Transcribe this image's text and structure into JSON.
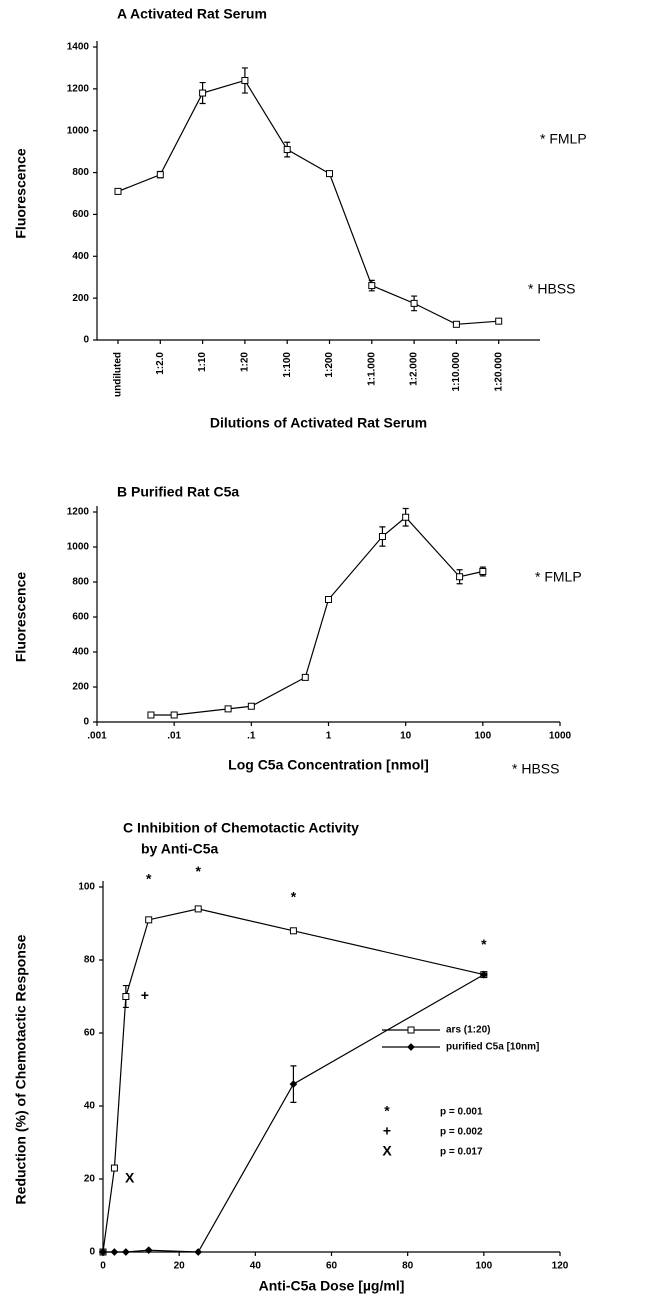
{
  "chart_data": [
    {
      "type": "line",
      "title": "A  Activated Rat Serum",
      "x_label": "Dilutions of Activated Rat Serum",
      "y_label": "Fluorescence",
      "categories": [
        "undiluted",
        "1:2.0",
        "1:10",
        "1:20",
        "1:100",
        "1:200",
        "1:1.000",
        "1:2.000",
        "1:10.000",
        "1:20.000"
      ],
      "values": [
        710,
        790,
        1180,
        1240,
        910,
        795,
        260,
        175,
        75,
        90
      ],
      "errors": [
        null,
        15,
        50,
        60,
        35,
        null,
        25,
        35,
        null,
        null
      ],
      "marker": "square",
      "color": "#000000",
      "ylim": [
        0,
        1400
      ],
      "yticks": [
        0,
        200,
        400,
        600,
        800,
        1000,
        1200,
        1400
      ],
      "annotations": [
        "* FMLP",
        "* HBSS"
      ]
    },
    {
      "type": "line",
      "title": "B  Purified Rat C5a",
      "x_label": "Log C5a Concentration [nmol]",
      "y_label": "Fluorescence",
      "x": [
        0.005,
        0.01,
        0.05,
        0.1,
        0.5,
        1,
        5,
        10,
        50,
        100
      ],
      "values": [
        40,
        40,
        75,
        90,
        255,
        700,
        1060,
        1170,
        830,
        860
      ],
      "errors": [
        null,
        null,
        null,
        null,
        null,
        null,
        55,
        50,
        40,
        25
      ],
      "marker": "square",
      "color": "#000000",
      "log_x": true,
      "xlim": [
        0.001,
        1000
      ],
      "xticks": [
        {
          "value": 0.001,
          "label": ".001"
        },
        {
          "value": 0.01,
          "label": ".01"
        },
        {
          "value": 0.1,
          "label": ".1"
        },
        1,
        10,
        100,
        1000
      ],
      "ylim": [
        0,
        1200
      ],
      "yticks": [
        0,
        200,
        400,
        600,
        800,
        1000,
        1200
      ],
      "annotations": [
        "* FMLP",
        "* HBSS"
      ]
    },
    {
      "type": "line",
      "title": "C  Inhibition of Chemotactic Activity",
      "subtitle": "by Anti-C5a",
      "x_label": "Anti-C5a Dose [µg/ml]",
      "y_label": "Reduction (%) of Chemotactic Response",
      "series": [
        {
          "name": "ars (1:20)",
          "marker": "square",
          "color": "#000000",
          "x": [
            0,
            3,
            6,
            12,
            25,
            50,
            100
          ],
          "values": [
            0,
            23,
            70,
            91,
            94,
            88,
            76
          ],
          "errors": [
            null,
            null,
            3,
            null,
            null,
            null,
            null
          ]
        },
        {
          "name": "purified C5a [10nm]",
          "marker": "diamond",
          "color": "#000000",
          "x": [
            0,
            3,
            6,
            12,
            25,
            50,
            100
          ],
          "values": [
            0,
            0,
            0,
            0.5,
            0,
            46,
            76
          ],
          "errors": [
            null,
            null,
            null,
            null,
            null,
            5,
            null
          ]
        }
      ],
      "markers": [
        {
          "symbol": "*",
          "x": 12,
          "y": 102
        },
        {
          "symbol": "*",
          "x": 25,
          "y": 104
        },
        {
          "symbol": "*",
          "x": 50,
          "y": 97
        },
        {
          "symbol": "*",
          "x": 100,
          "y": 84
        },
        {
          "symbol": "+",
          "x": 11,
          "y": 70
        },
        {
          "symbol": "X",
          "x": 7,
          "y": 20
        }
      ],
      "key": [
        {
          "symbol": "*",
          "label": "p = 0.001"
        },
        {
          "symbol": "+",
          "label": "p = 0.002"
        },
        {
          "symbol": "X",
          "label": "p = 0.017"
        }
      ],
      "xlim": [
        0,
        120
      ],
      "xticks": [
        0,
        20,
        40,
        60,
        80,
        100,
        120
      ],
      "ylim": [
        0,
        100
      ],
      "yticks": [
        0,
        20,
        40,
        60,
        80,
        100
      ]
    }
  ]
}
